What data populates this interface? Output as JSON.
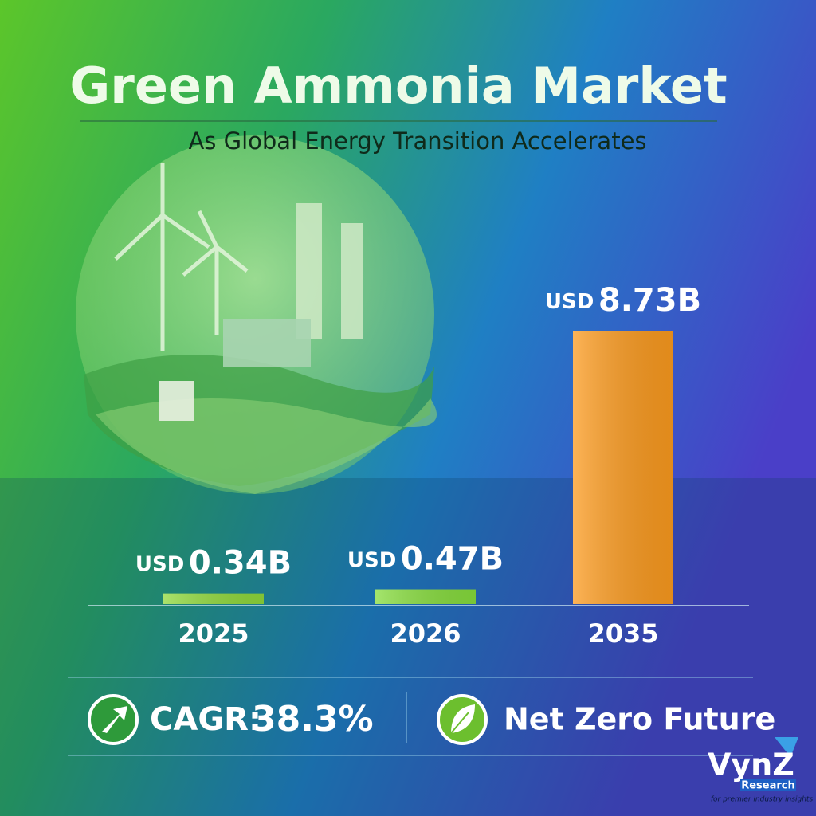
{
  "chart_data": {
    "type": "bar",
    "title": "Green Ammonia Market",
    "subtitle": "As Global Energy Transition Accelerates",
    "categories": [
      "2025",
      "2026",
      "2035"
    ],
    "values": [
      0.34,
      0.47,
      8.73
    ],
    "currency": "USD",
    "value_labels": [
      "0.34B",
      "0.47B",
      "8.73B"
    ],
    "colors": [
      "#8fd83a",
      "#86dc3c",
      "#fb9a1e"
    ],
    "highlights": [
      {
        "label": "CAGR:",
        "value": "38.3%"
      },
      {
        "label": "Net Zero Future"
      }
    ],
    "logo": {
      "name": "VynZ",
      "sub": "Research",
      "tagline": "for premier industry insights"
    }
  }
}
